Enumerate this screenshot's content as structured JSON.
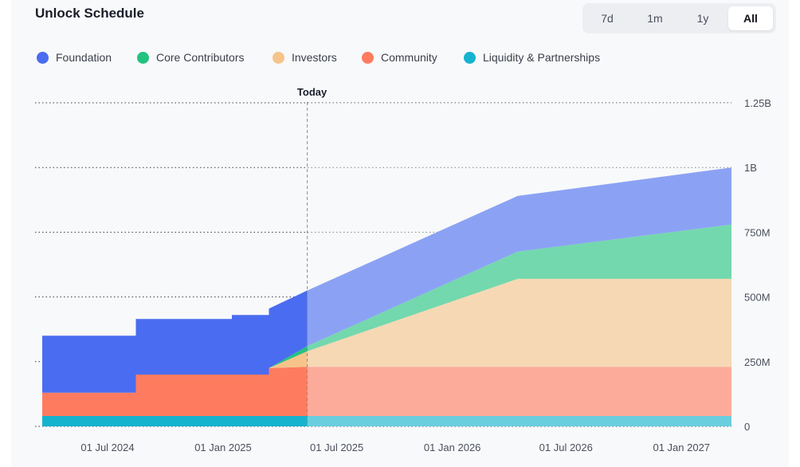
{
  "header": {
    "title": "Unlock Schedule",
    "ranges": [
      {
        "label": "7d",
        "active": false
      },
      {
        "label": "1m",
        "active": false
      },
      {
        "label": "1y",
        "active": false
      },
      {
        "label": "All",
        "active": true
      }
    ]
  },
  "chart_data": {
    "type": "area",
    "stacked": true,
    "title": "Unlock Schedule",
    "xlabel": "",
    "ylabel": "",
    "x_ticks": [
      "01 Jul 2024",
      "01 Jan 2025",
      "01 Jul 2025",
      "01 Jan 2026",
      "01 Jul 2026",
      "01 Jan 2027"
    ],
    "y_ticks": [
      "0",
      "250M",
      "500M",
      "750M",
      "1B",
      "1.25B"
    ],
    "ylim": [
      0,
      1250000000
    ],
    "grid": true,
    "legend_position": "top-left",
    "x": [
      "2024-03-15",
      "2024-06-15",
      "2024-08-15",
      "2025-01-15",
      "2025-03-15",
      "2025-05-15",
      "2026-04-15",
      "2027-03-15"
    ],
    "today": {
      "label": "Today",
      "date": "2025-05-15"
    },
    "series": [
      {
        "name": "Liquidity & Partnerships",
        "color": "#16b3cf",
        "values": [
          40000000,
          40000000,
          40000000,
          40000000,
          40000000,
          40000000,
          40000000,
          40000000
        ]
      },
      {
        "name": "Community",
        "color": "#ff7b60",
        "values": [
          90000000,
          90000000,
          160000000,
          160000000,
          185000000,
          190000000,
          190000000,
          190000000
        ]
      },
      {
        "name": "Investors",
        "color": "#f6c48a",
        "values": [
          0,
          0,
          0,
          0,
          0,
          60000000,
          340000000,
          340000000
        ]
      },
      {
        "name": "Core Contributors",
        "color": "#23c37f",
        "values": [
          0,
          0,
          0,
          0,
          0,
          20000000,
          105000000,
          210000000
        ]
      },
      {
        "name": "Foundation",
        "color": "#4a6cf0",
        "values": [
          220000000,
          220000000,
          215000000,
          230000000,
          230000000,
          215000000,
          215000000,
          220000000
        ]
      }
    ]
  }
}
